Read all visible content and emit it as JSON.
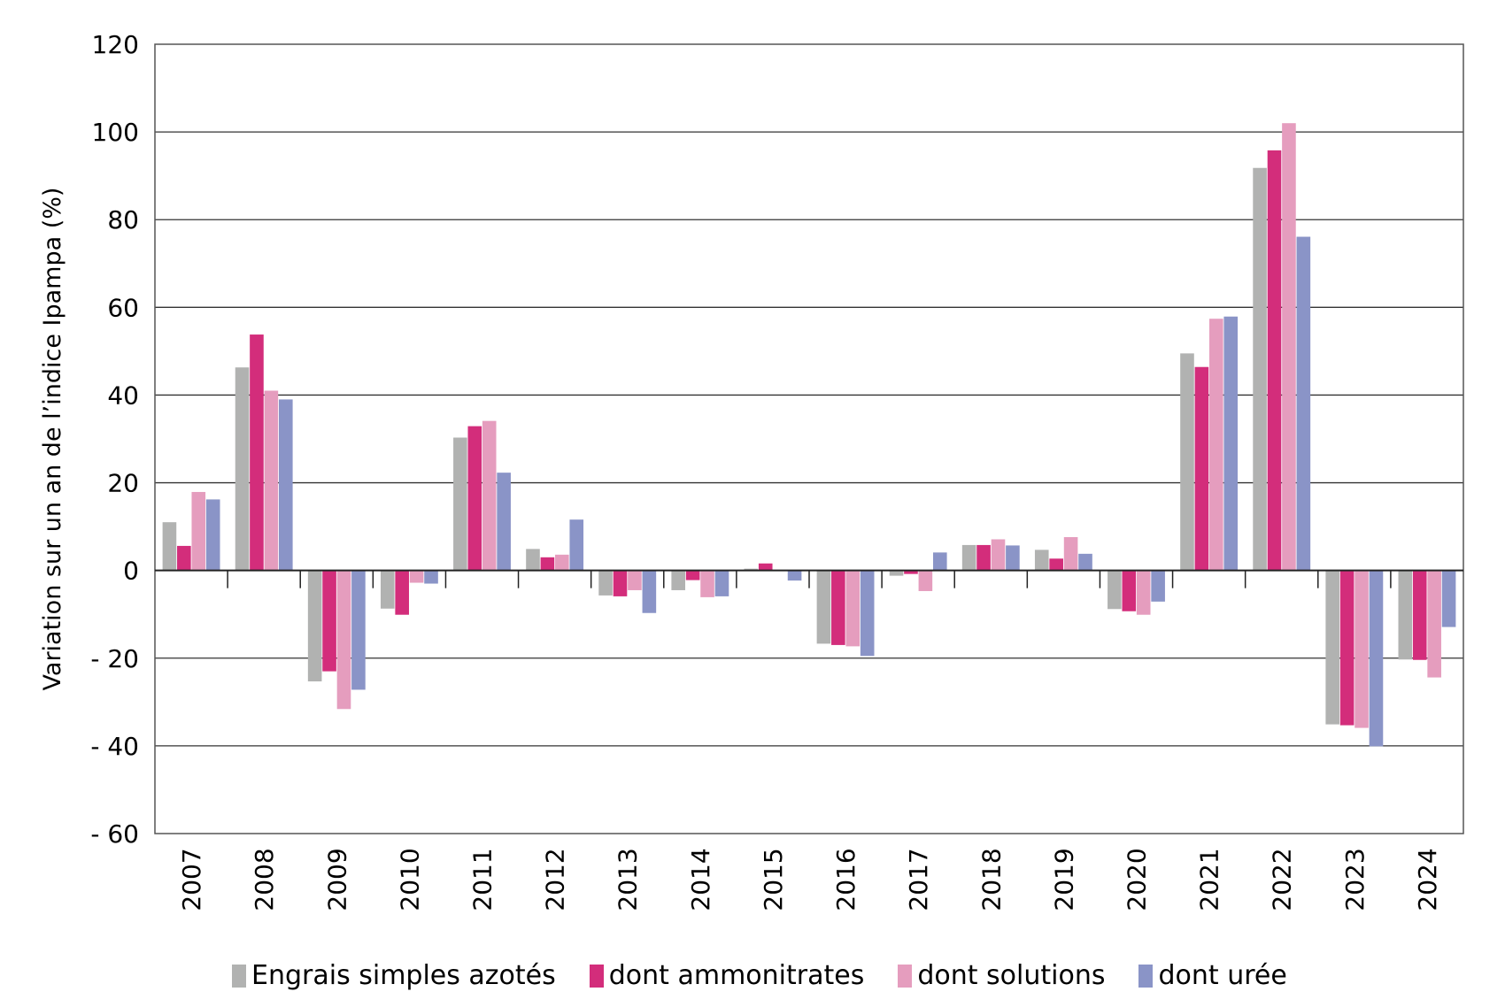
{
  "chart_data": {
    "type": "bar",
    "title": "",
    "xlabel": "",
    "ylabel": "Variation sur un an de l’indice Ipampa (%)",
    "ylim": [
      -60,
      120
    ],
    "yticks": [
      120,
      100,
      80,
      60,
      40,
      20,
      0,
      -20,
      -40,
      -60
    ],
    "ytick_labels": [
      "120",
      "100",
      "80",
      "60",
      "40",
      "20",
      "0",
      "- 20",
      "- 40",
      "- 60"
    ],
    "grid": true,
    "legend_position": "bottom",
    "categories": [
      "2007",
      "2008",
      "2009",
      "2010",
      "2011",
      "2012",
      "2013",
      "2014",
      "2015",
      "2016",
      "2017",
      "2018",
      "2019",
      "2020",
      "2021",
      "2022",
      "2023",
      "2024"
    ],
    "series": [
      {
        "name": "Engrais simples azotés",
        "color": "#b1b2b1",
        "values": [
          11.0,
          46.3,
          -25.3,
          -8.7,
          30.3,
          4.9,
          -5.7,
          -4.5,
          0.4,
          -16.7,
          -1.2,
          5.8,
          4.7,
          -8.8,
          49.5,
          91.8,
          -35.1,
          -20.3
        ]
      },
      {
        "name": "dont ammonitrates",
        "color": "#d32d7b",
        "values": [
          5.6,
          53.8,
          -23.0,
          -10.1,
          32.9,
          3.0,
          -5.9,
          -2.2,
          1.6,
          -17.0,
          -0.8,
          5.8,
          2.7,
          -9.3,
          46.4,
          95.8,
          -35.3,
          -20.4
        ]
      },
      {
        "name": "dont solutions",
        "color": "#e59dbe",
        "values": [
          17.9,
          41.0,
          -31.6,
          -2.8,
          34.1,
          3.6,
          -4.5,
          -6.1,
          0.0,
          -17.3,
          -4.7,
          7.1,
          7.6,
          -10.1,
          57.4,
          102.0,
          -35.9,
          -24.4
        ]
      },
      {
        "name": "dont urée",
        "color": "#8a94c7",
        "values": [
          16.2,
          39.0,
          -27.2,
          -3.0,
          22.3,
          11.6,
          -9.7,
          -5.9,
          -2.3,
          -19.5,
          4.1,
          5.7,
          3.8,
          -7.1,
          57.9,
          76.1,
          -40.1,
          -12.9
        ]
      }
    ]
  }
}
